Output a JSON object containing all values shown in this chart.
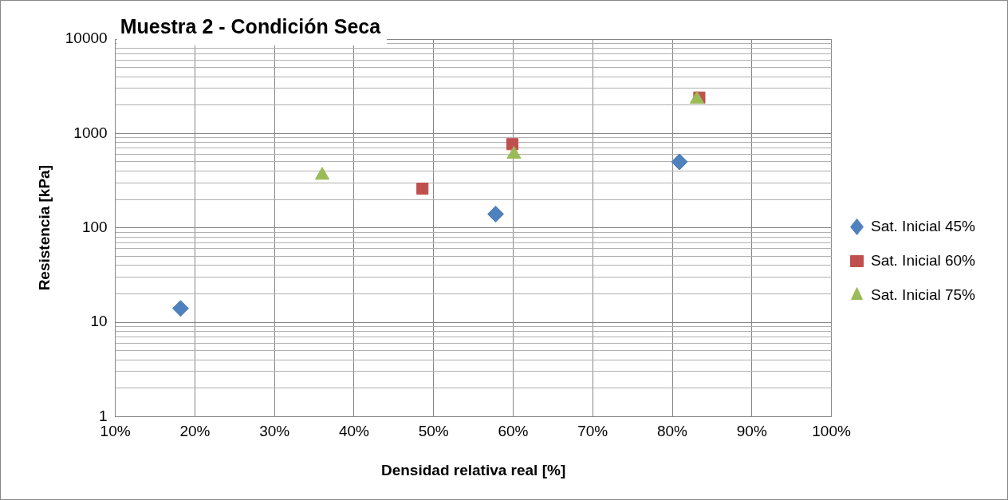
{
  "chart_data": {
    "type": "scatter",
    "title": "Muestra 2 - Condición Seca",
    "xlabel": "Densidad relativa real [%]",
    "ylabel": "Resistencia [kPa]",
    "series": [
      {
        "name": "Sat. Inicial 45%",
        "color": "#4f81bd",
        "marker": "diamond",
        "x": [
          18.2,
          57.8,
          80.9
        ],
        "values": [
          14,
          140,
          500
        ]
      },
      {
        "name": "Sat. Inicial 60%",
        "color": "#c0504d",
        "marker": "square",
        "x": [
          48.6,
          59.9,
          83.4
        ],
        "values": [
          260,
          770,
          2400
        ]
      },
      {
        "name": "Sat. Inicial 75%",
        "color": "#9bbb59",
        "marker": "triangle",
        "x": [
          36.0,
          60.1,
          83.1
        ],
        "values": [
          360,
          600,
          2300
        ]
      }
    ],
    "log": "y",
    "grid": true,
    "legend": "right",
    "xlim": [
      10,
      100
    ],
    "xticks": [
      {
        "value": 10,
        "label": "10%"
      },
      {
        "value": 20,
        "label": "20%"
      },
      {
        "value": 30,
        "label": "30%"
      },
      {
        "value": 40,
        "label": "40%"
      },
      {
        "value": 50,
        "label": "50%"
      },
      {
        "value": 60,
        "label": "60%"
      },
      {
        "value": 70,
        "label": "70%"
      },
      {
        "value": 80,
        "label": "80%"
      },
      {
        "value": 90,
        "label": "90%"
      },
      {
        "value": 100,
        "label": "100%"
      }
    ],
    "ylim": [
      1,
      10000
    ],
    "yticks": [
      1,
      {
        "value": 2,
        "label": null
      },
      {
        "value": 3,
        "label": null
      },
      {
        "value": 4,
        "label": null
      },
      {
        "value": 5,
        "label": null
      },
      {
        "value": 6,
        "label": null
      },
      {
        "value": 7,
        "label": null
      },
      {
        "value": 8,
        "label": null
      },
      {
        "value": 9,
        "label": null
      },
      10,
      {
        "value": 20,
        "label": null
      },
      {
        "value": 30,
        "label": null
      },
      {
        "value": 40,
        "label": null
      },
      {
        "value": 50,
        "label": null
      },
      {
        "value": 60,
        "label": null
      },
      {
        "value": 70,
        "label": null
      },
      {
        "value": 80,
        "label": null
      },
      {
        "value": 90,
        "label": null
      },
      100,
      {
        "value": 200,
        "label": null
      },
      {
        "value": 300,
        "label": null
      },
      {
        "value": 400,
        "label": null
      },
      {
        "value": 500,
        "label": null
      },
      {
        "value": 600,
        "label": null
      },
      {
        "value": 700,
        "label": null
      },
      {
        "value": 800,
        "label": null
      },
      {
        "value": 900,
        "label": null
      },
      1000,
      {
        "value": 2000,
        "label": null
      },
      {
        "value": 3000,
        "label": null
      },
      {
        "value": 4000,
        "label": null
      },
      {
        "value": 5000,
        "label": null
      },
      {
        "value": 6000,
        "label": null
      },
      {
        "value": 7000,
        "label": null
      },
      {
        "value": 8000,
        "label": null
      },
      {
        "value": 9000,
        "label": null
      },
      10000
    ]
  }
}
